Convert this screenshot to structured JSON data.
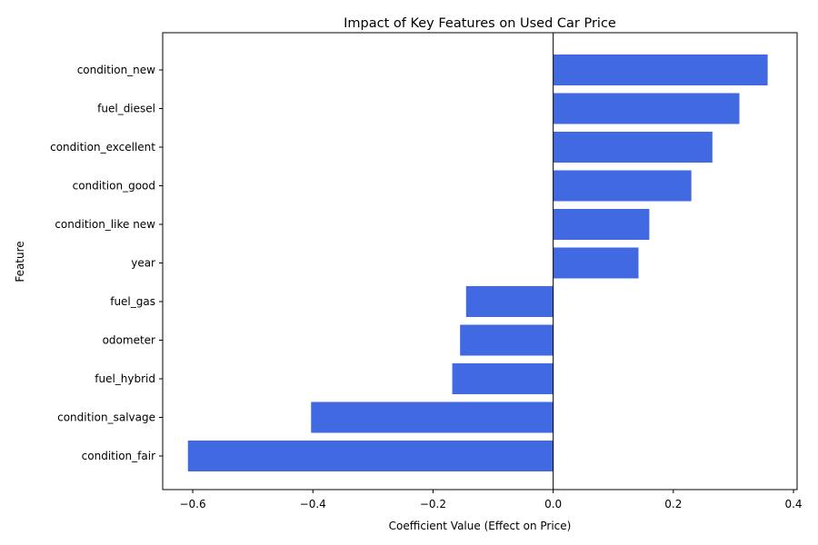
{
  "chart_data": {
    "type": "bar",
    "orientation": "horizontal",
    "title": "Impact of Key Features on Used Car Price",
    "xlabel": "Coefficient Value (Effect on Price)",
    "ylabel": "Feature",
    "categories": [
      "condition_new",
      "fuel_diesel",
      "condition_excellent",
      "condition_good",
      "condition_like new",
      "year",
      "fuel_gas",
      "odometer",
      "fuel_hybrid",
      "condition_salvage",
      "condition_fair"
    ],
    "values": [
      0.357,
      0.31,
      0.265,
      0.23,
      0.16,
      0.142,
      -0.145,
      -0.155,
      -0.168,
      -0.403,
      -0.608
    ],
    "xlim": [
      -0.65,
      0.406
    ],
    "xticks": [
      -0.6,
      -0.4,
      -0.2,
      0.0,
      0.2,
      0.4
    ],
    "xtick_labels": [
      "−0.6",
      "−0.4",
      "−0.2",
      "0.0",
      "0.2",
      "0.4"
    ],
    "bar_color": "#4169e1",
    "zero_line": true,
    "grid": false
  }
}
